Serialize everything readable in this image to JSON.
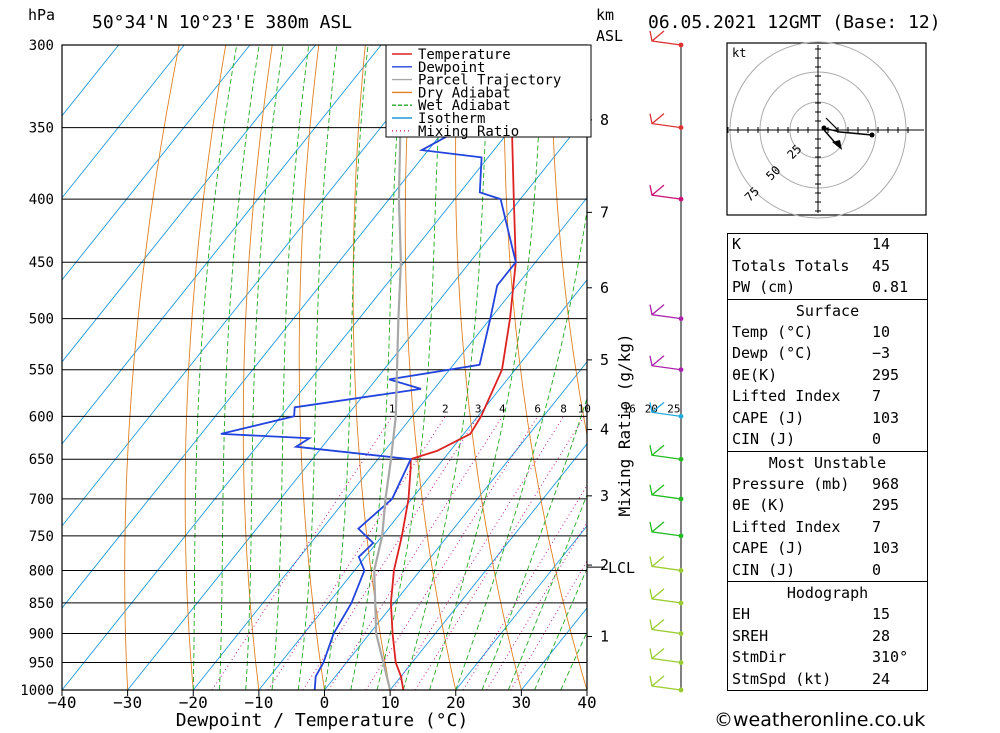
{
  "header": {
    "location": "50°34'N 10°23'E 380m ASL",
    "datetime": "06.05.2021 12GMT (Base: 12)",
    "y_unit": "hPa",
    "km_unit": "km",
    "asl_unit": "ASL"
  },
  "chart_data": {
    "type": "line",
    "subtype": "skew-t log-p",
    "xlabel": "Dewpoint / Temperature (°C)",
    "ylabel": "hPa",
    "xlim": [
      -40,
      40
    ],
    "ylim": [
      1000,
      300
    ],
    "x_ticks": [
      "−40",
      "−30",
      "−20",
      "−10",
      "0",
      "10",
      "20",
      "30",
      "40"
    ],
    "pressure_levels": [
      300,
      350,
      400,
      450,
      500,
      550,
      600,
      650,
      700,
      750,
      800,
      850,
      900,
      950,
      1000
    ],
    "km_ticks": [
      {
        "km": "1",
        "p": 905
      },
      {
        "km": "2",
        "p": 792
      },
      {
        "km": "3",
        "p": 696
      },
      {
        "km": "4",
        "p": 615
      },
      {
        "km": "5",
        "p": 540
      },
      {
        "km": "6",
        "p": 472
      },
      {
        "km": "7",
        "p": 410
      },
      {
        "km": "8",
        "p": 345
      }
    ],
    "lcl": {
      "label": "LCL",
      "p": 795,
      "km": "2"
    },
    "mixing_ratio_label": "Mixing Ratio (g/kg)",
    "mixing_ratio_values": [
      "1",
      "2",
      "3",
      "4",
      "6",
      "8",
      "10",
      "16",
      "20",
      "25"
    ],
    "legend": [
      "Temperature",
      "Dewpoint",
      "Parcel Trajectory",
      "Dry Adiabat",
      "Wet Adiabat",
      "Isotherm",
      "Mixing Ratio"
    ],
    "colors": {
      "temperature": "#dd2222",
      "dewpoint": "#2244dd",
      "parcel": "#a8a8a8",
      "dry_adiabat": "#e08020",
      "wet_adiabat": "#22aa22",
      "isotherm": "#2299dd",
      "mixing_ratio": "#c0208f"
    },
    "series": [
      {
        "name": "Temperature",
        "points": [
          [
            1000,
            12
          ],
          [
            975,
            10
          ],
          [
            950,
            7.5
          ],
          [
            900,
            3.5
          ],
          [
            850,
            -0.5
          ],
          [
            800,
            -4
          ],
          [
            750,
            -7
          ],
          [
            700,
            -10.5
          ],
          [
            660,
            -14
          ],
          [
            650,
            -15
          ],
          [
            640,
            -12
          ],
          [
            620,
            -9
          ],
          [
            600,
            -9.5
          ],
          [
            550,
            -12
          ],
          [
            500,
            -17
          ],
          [
            450,
            -23
          ],
          [
            400,
            -31
          ],
          [
            350,
            -40
          ],
          [
            300,
            -49.5
          ]
        ]
      },
      {
        "name": "Dewpoint",
        "points": [
          [
            1000,
            -1.5
          ],
          [
            975,
            -3
          ],
          [
            950,
            -3.5
          ],
          [
            900,
            -5.5
          ],
          [
            850,
            -6.5
          ],
          [
            800,
            -8.5
          ],
          [
            780,
            -11
          ],
          [
            760,
            -10.5
          ],
          [
            740,
            -14.5
          ],
          [
            700,
            -13
          ],
          [
            650,
            -15
          ],
          [
            635,
            -34
          ],
          [
            625,
            -33
          ],
          [
            620,
            -47
          ],
          [
            600,
            -38
          ],
          [
            590,
            -39
          ],
          [
            570,
            -22
          ],
          [
            560,
            -28
          ],
          [
            545,
            -16
          ],
          [
            500,
            -20
          ],
          [
            470,
            -23
          ],
          [
            450,
            -23
          ],
          [
            400,
            -33
          ],
          [
            395,
            -37
          ],
          [
            370,
            -41
          ],
          [
            365,
            -51
          ],
          [
            340,
            -45
          ],
          [
            300,
            -53
          ],
          [
            290,
            -55
          ]
        ]
      },
      {
        "name": "Parcel Trajectory",
        "points": [
          [
            1000,
            10
          ],
          [
            900,
            1
          ],
          [
            800,
            -7
          ],
          [
            750,
            -10
          ],
          [
            700,
            -14
          ],
          [
            650,
            -18
          ],
          [
            600,
            -22.5
          ],
          [
            550,
            -28
          ],
          [
            500,
            -34
          ],
          [
            450,
            -40.5
          ],
          [
            400,
            -48.5
          ],
          [
            350,
            -57
          ],
          [
            300,
            -67
          ]
        ]
      }
    ],
    "wind_barbs_hpa": [
      300,
      350,
      400,
      500,
      550,
      600,
      650,
      700,
      750,
      800,
      850,
      900,
      950,
      1000
    ],
    "hodograph": {
      "unit": "kt",
      "rings": [
        "25",
        "50",
        "75"
      ]
    }
  },
  "indices": [
    {
      "k": "K",
      "v": "14"
    },
    {
      "k": "Totals Totals",
      "v": "45"
    },
    {
      "k": "PW (cm)",
      "v": "0.81"
    }
  ],
  "surface": {
    "title": "Surface",
    "rows": [
      {
        "k": "Temp (°C)",
        "v": "10"
      },
      {
        "k": "Dewp (°C)",
        "v": "−3"
      },
      {
        "k": "θE(K)",
        "v": "295"
      },
      {
        "k": "Lifted Index",
        "v": "7"
      },
      {
        "k": "CAPE (J)",
        "v": "103"
      },
      {
        "k": "CIN (J)",
        "v": "0"
      }
    ]
  },
  "most_unstable": {
    "title": "Most Unstable",
    "rows": [
      {
        "k": "Pressure (mb)",
        "v": "968"
      },
      {
        "k": "θE (K)",
        "v": "295"
      },
      {
        "k": "Lifted Index",
        "v": "7"
      },
      {
        "k": "CAPE (J)",
        "v": "103"
      },
      {
        "k": "CIN (J)",
        "v": "0"
      }
    ]
  },
  "hodograph_table": {
    "title": "Hodograph",
    "rows": [
      {
        "k": "EH",
        "v": "15"
      },
      {
        "k": "SREH",
        "v": "28"
      },
      {
        "k": "StmDir",
        "v": "310°"
      },
      {
        "k": "StmSpd (kt)",
        "v": "24"
      }
    ]
  },
  "footer": "©weatheronline.co.uk"
}
